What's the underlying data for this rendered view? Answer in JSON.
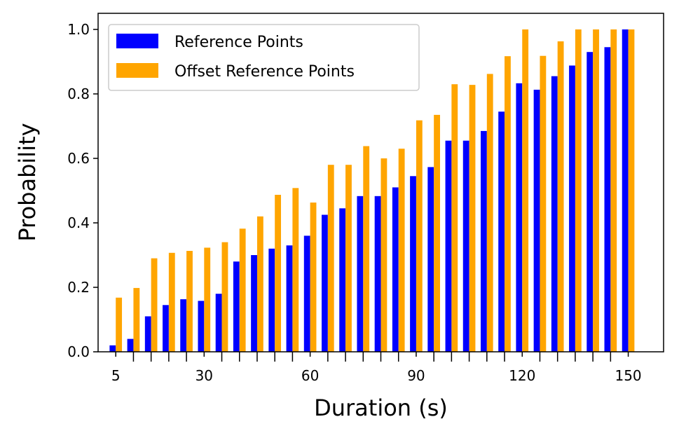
{
  "chart_data": {
    "type": "bar",
    "xlabel": "Duration (s)",
    "ylabel": "Probability",
    "x_tick_labels": [
      "5",
      "30",
      "60",
      "90",
      "120",
      "150"
    ],
    "x_tick_values": [
      5,
      30,
      60,
      90,
      120,
      150
    ],
    "y_tick_labels": [
      "0.0",
      "0.2",
      "0.4",
      "0.6",
      "0.8",
      "1.0"
    ],
    "ylim": [
      0,
      1.05
    ],
    "categories": [
      5,
      10,
      15,
      20,
      25,
      30,
      35,
      40,
      45,
      50,
      55,
      60,
      65,
      70,
      75,
      80,
      85,
      90,
      95,
      100,
      105,
      110,
      115,
      120,
      125,
      130,
      135,
      140,
      145,
      150
    ],
    "series": [
      {
        "name": "Reference Points",
        "color": "#0000ff",
        "values": [
          0.02,
          0.04,
          0.11,
          0.145,
          0.163,
          0.158,
          0.18,
          0.28,
          0.3,
          0.32,
          0.33,
          0.36,
          0.425,
          0.445,
          0.483,
          0.483,
          0.51,
          0.545,
          0.573,
          0.655,
          0.655,
          0.685,
          0.745,
          0.833,
          0.813,
          0.855,
          0.888,
          0.93,
          0.945,
          1.0
        ]
      },
      {
        "name": "Offset Reference Points",
        "color": "#ffa500",
        "values": [
          0.168,
          0.198,
          0.29,
          0.307,
          0.313,
          0.323,
          0.34,
          0.382,
          0.42,
          0.487,
          0.508,
          0.463,
          0.58,
          0.58,
          0.638,
          0.6,
          0.63,
          0.718,
          0.735,
          0.83,
          0.828,
          0.862,
          0.917,
          1.0,
          0.918,
          0.963,
          1.0,
          1.0,
          1.0,
          1.0
        ]
      }
    ],
    "legend_position": "top-left",
    "grid": false
  }
}
